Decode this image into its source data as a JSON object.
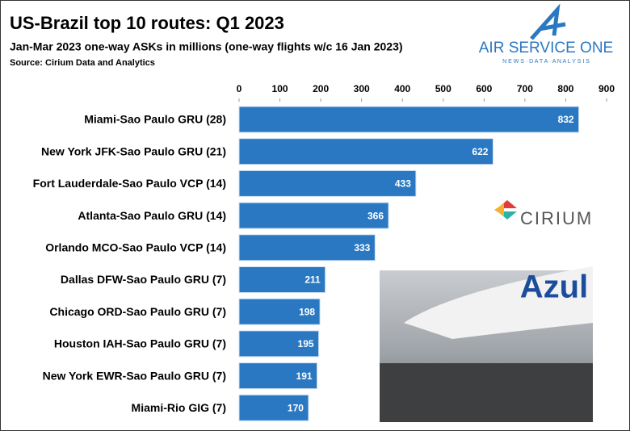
{
  "chart_data": {
    "type": "barh",
    "title": "US-Brazil top 10 routes: Q1 2023",
    "subtitle": "Jan-Mar 2023 one-way ASKs in millions (one-way flights w/c 16 Jan 2023)",
    "source": "Source: Cirium Data and Analytics",
    "categories": [
      "Miami-Sao Paulo GRU (28)",
      "New York JFK-Sao Paulo GRU (21)",
      "Fort Lauderdale-Sao Paulo VCP (14)",
      "Atlanta-Sao Paulo GRU (14)",
      "Orlando MCO-Sao Paulo VCP (14)",
      "Dallas DFW-Sao Paulo GRU (7)",
      "Chicago ORD-Sao Paulo GRU (7)",
      "Houston IAH-Sao Paulo GRU (7)",
      "New York EWR-Sao Paulo GRU (7)",
      "Miami-Rio GIG (7)"
    ],
    "values": [
      832,
      622,
      433,
      366,
      333,
      211,
      198,
      195,
      191,
      170
    ],
    "color": "#2a78c2",
    "xlim": [
      0,
      900
    ],
    "xticks": [
      0,
      100,
      200,
      300,
      400,
      500,
      600,
      700,
      800,
      900
    ]
  },
  "logos": {
    "brand": "AIR SERVICE ONE",
    "tagline": "N E W S  ·  D A T A  ·  A N A L Y S I S",
    "partner": "CIRIUM",
    "photo_text": "Azul"
  }
}
